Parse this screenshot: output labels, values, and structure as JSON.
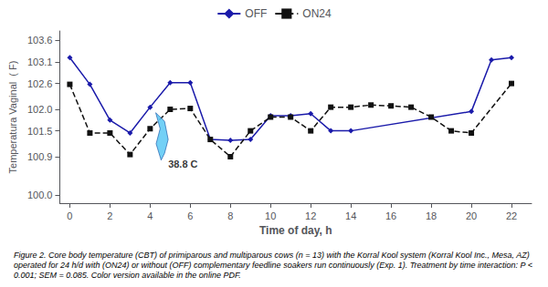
{
  "chart_data": {
    "type": "line",
    "xlabel": "Time of day, h",
    "ylabel": "Temperatura Vaginal  ( F)",
    "caption": "Figure 2. Core body temperature (CBT) of primiparous and multiparous cows (n = 13) with the Korral Kool system (Korral Kool Inc., Mesa, AZ) operated for 24 h/d with (ON24) or without (OFF) complementary feedline soakers run continuously (Exp. 1). Treatment by time interaction: P < 0.001; SEM = 0.085. Color version available in the online PDF.",
    "series": [
      {
        "name": "OFF",
        "color": "#1a1aaa",
        "marker": "diamond",
        "line_style": "solid",
        "x": [
          0,
          1,
          2,
          3,
          4,
          5,
          6,
          7,
          8,
          9,
          10,
          11,
          12,
          13,
          14,
          20,
          21,
          22
        ],
        "values": [
          103.2,
          102.58,
          101.75,
          101.45,
          102.05,
          102.62,
          102.62,
          101.3,
          101.28,
          101.3,
          101.85,
          101.85,
          101.9,
          101.5,
          101.5,
          101.95,
          103.15,
          103.2
        ]
      },
      {
        "name": "ON24",
        "color": "#111111",
        "marker": "square",
        "line_style": "dashed",
        "x": [
          0,
          1,
          2,
          3,
          4,
          5,
          6,
          7,
          8,
          9,
          10,
          11,
          12,
          13,
          14,
          15,
          16,
          17,
          18,
          19,
          20,
          22
        ],
        "values": [
          102.58,
          101.45,
          101.45,
          100.95,
          101.55,
          102.0,
          102.02,
          101.3,
          100.9,
          101.5,
          101.82,
          101.82,
          101.5,
          102.05,
          102.05,
          102.1,
          102.08,
          102.05,
          101.82,
          101.5,
          101.45,
          102.6
        ]
      }
    ],
    "xlim": [
      -0.5,
      23.0
    ],
    "xticks": [
      0,
      2,
      4,
      6,
      8,
      10,
      12,
      14,
      16,
      18,
      20,
      22
    ],
    "ylim": [
      99.82,
      103.82
    ],
    "yticks": [
      {
        "value": 100.0,
        "label": "100.0"
      },
      100.9,
      101.5,
      {
        "value": 102.0,
        "label": "102.0"
      },
      102.6,
      103.1,
      103.6
    ],
    "grid": false,
    "legend": "top",
    "annotations": [
      {
        "text": "38.8 C",
        "x": 4.9,
        "y": 100.72
      },
      {
        "shape": "polygon",
        "x": [
          4.55,
          4.3,
          4.5,
          4.28,
          4.72,
          4.9,
          4.72
        ],
        "y": [
          100.82,
          101.2,
          101.55,
          101.92,
          101.72,
          101.3,
          100.98
        ],
        "color": "#5BC8F5",
        "edge_color": "#1a5aaa"
      }
    ]
  }
}
